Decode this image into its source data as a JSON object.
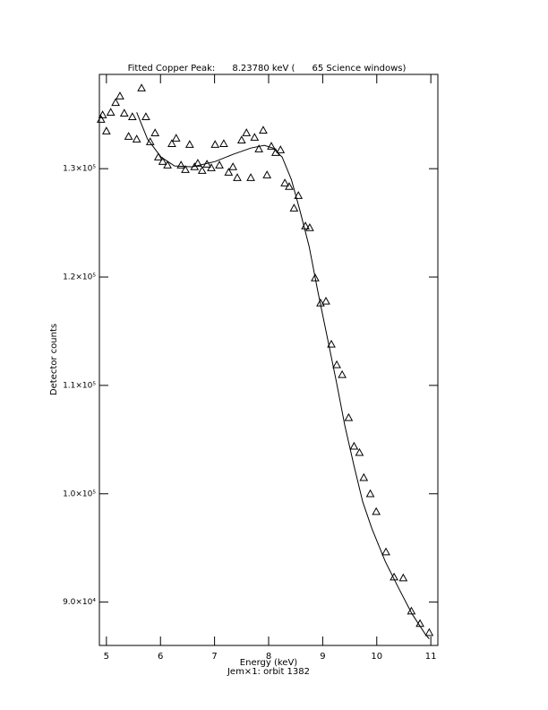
{
  "chart_data": {
    "type": "scatter",
    "title": "Fitted Copper Peak:      8.23780 keV (      65 Science windows)",
    "x_label": "Energy (keV)",
    "subtitle": "Jem×1: orbit 1382",
    "y_label": "Detector counts",
    "xlim": [
      4.87,
      11.13
    ],
    "ylim": [
      86000,
      138700
    ],
    "xticks": [
      5,
      6,
      7,
      8,
      9,
      10,
      11
    ],
    "yticks": [
      {
        "value": 90000,
        "label": "9.0×10⁴"
      },
      {
        "value": 100000,
        "label": "1.0×10⁵"
      },
      {
        "value": 110000,
        "label": "1.1×10⁵"
      },
      {
        "value": 120000,
        "label": "1.2×10⁵"
      },
      {
        "value": 130000,
        "label": "1.3×10⁵"
      }
    ],
    "series": [
      {
        "marker": "triangle",
        "color": "#000000",
        "x": [
          4.9,
          4.93,
          5.0,
          5.08,
          5.17,
          5.25,
          5.33,
          5.41,
          5.48,
          5.56,
          5.65,
          5.73,
          5.81,
          5.9,
          5.96,
          6.04,
          6.13,
          6.21,
          6.29,
          6.38,
          6.46,
          6.54,
          6.63,
          6.69,
          6.77,
          6.86,
          6.94,
          7.01,
          7.09,
          7.17,
          7.26,
          7.34,
          7.42,
          7.5,
          7.59,
          7.67,
          7.74,
          7.82,
          7.9,
          7.97,
          8.05,
          8.13,
          8.22,
          8.3,
          8.38,
          8.47,
          8.55,
          8.68,
          8.76,
          8.86,
          8.96,
          9.06,
          9.16,
          9.26,
          9.36,
          9.48,
          9.58,
          9.68,
          9.76,
          9.88,
          9.99,
          10.17,
          10.32,
          10.49,
          10.64,
          10.8,
          10.97
        ],
        "values": [
          134545,
          134960,
          133470,
          135200,
          136100,
          136700,
          135120,
          132980,
          134790,
          132730,
          137440,
          134790,
          132480,
          133300,
          131070,
          130660,
          130330,
          132310,
          132810,
          130330,
          129920,
          132230,
          130170,
          130500,
          129830,
          130410,
          130080,
          132230,
          130330,
          132310,
          129670,
          130170,
          129170,
          132640,
          133310,
          129170,
          132890,
          131820,
          133550,
          129420,
          132070,
          131490,
          131740,
          128680,
          128350,
          126360,
          127520,
          124710,
          124550,
          119920,
          117600,
          117770,
          113800,
          111900,
          110990,
          107020,
          104380,
          103800,
          101490,
          100000,
          98350,
          94630,
          92310,
          92230,
          89170,
          88020,
          87190
        ]
      },
      {
        "marker": "line",
        "color": "#000000",
        "x": [
          5.56,
          5.76,
          6.01,
          6.26,
          6.59,
          7.01,
          7.34,
          7.67,
          7.92,
          8.08,
          8.25,
          8.42,
          8.58,
          8.75,
          8.91,
          9.08,
          9.25,
          9.41,
          9.58,
          9.74,
          9.91,
          10.16,
          10.41,
          10.65,
          10.9,
          10.97
        ],
        "values": [
          135200,
          132730,
          131070,
          130250,
          130170,
          130660,
          131320,
          131900,
          132150,
          131900,
          131070,
          129010,
          126120,
          122810,
          118680,
          114550,
          110410,
          106280,
          102560,
          99260,
          96780,
          93720,
          91240,
          88930,
          87020,
          86610
        ]
      }
    ]
  }
}
